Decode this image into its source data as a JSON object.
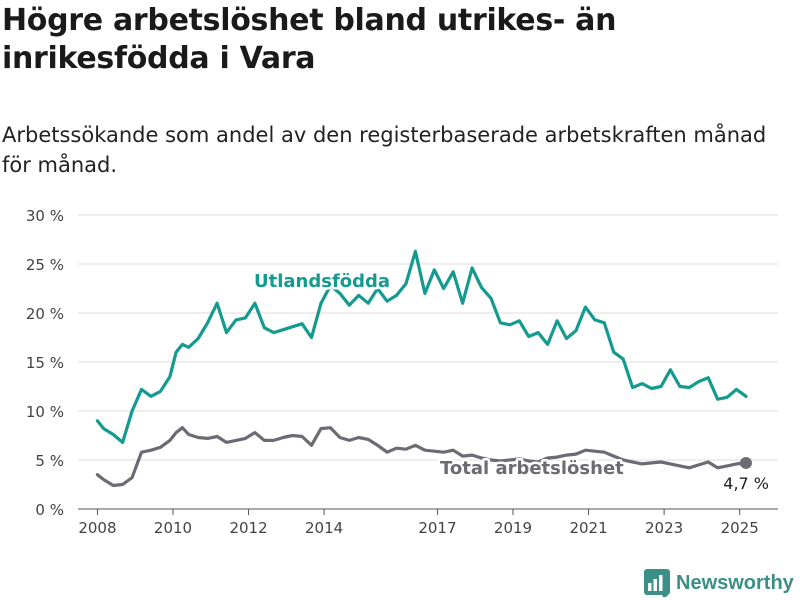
{
  "title": "Högre arbetslöshet bland utrikes- än inrikesfödda i Vara",
  "subtitle": "Arbetssökande som andel av den registerbaserade arbetskraften månad för månad.",
  "brand": {
    "name": "Newsworthy"
  },
  "colors": {
    "foreign": "#149a8f",
    "total": "#6b6b73",
    "grid": "#dddddd",
    "axis": "#444444"
  },
  "chart_data": {
    "type": "line",
    "ylim": [
      0,
      30
    ],
    "ylabel": "",
    "yticks": [
      {
        "value": 0,
        "label": "0 %"
      },
      {
        "value": 5,
        "label": "5 %"
      },
      {
        "value": 10,
        "label": "10 %"
      },
      {
        "value": 15,
        "label": "15 %"
      },
      {
        "value": 20,
        "label": "20 %"
      },
      {
        "value": 25,
        "label": "25 %"
      },
      {
        "value": 30,
        "label": "30 %"
      }
    ],
    "xticks": [
      "2008",
      "2010",
      "2012",
      "2014",
      "2017",
      "2019",
      "2021",
      "2023",
      "2025"
    ],
    "annotations": {
      "end_value": "4,7 %"
    },
    "series": [
      {
        "name": "Utlandsfödda",
        "x": [
          "2008-01",
          "2008-03",
          "2008-06",
          "2008-09",
          "2008-12",
          "2009-03",
          "2009-06",
          "2009-09",
          "2009-12",
          "2010-02",
          "2010-04",
          "2010-06",
          "2010-09",
          "2010-12",
          "2011-03",
          "2011-06",
          "2011-09",
          "2011-12",
          "2012-03",
          "2012-06",
          "2012-09",
          "2012-12",
          "2013-03",
          "2013-06",
          "2013-09",
          "2013-12",
          "2014-03",
          "2014-06",
          "2014-09",
          "2014-12",
          "2015-03",
          "2015-06",
          "2015-09",
          "2015-12",
          "2016-03",
          "2016-06",
          "2016-09",
          "2016-12",
          "2017-03",
          "2017-06",
          "2017-09",
          "2017-12",
          "2018-03",
          "2018-06",
          "2018-09",
          "2018-12",
          "2019-03",
          "2019-06",
          "2019-09",
          "2019-12",
          "2020-03",
          "2020-06",
          "2020-09",
          "2020-12",
          "2021-03",
          "2021-06",
          "2021-09",
          "2021-12",
          "2022-03",
          "2022-06",
          "2022-09",
          "2022-12",
          "2023-03",
          "2023-06",
          "2023-09",
          "2023-12",
          "2024-03",
          "2024-06",
          "2024-09",
          "2024-12",
          "2025-03"
        ],
        "values": [
          9.0,
          8.2,
          7.6,
          6.8,
          10.0,
          12.2,
          11.5,
          12.0,
          13.5,
          16.0,
          16.8,
          16.5,
          17.4,
          19.0,
          21.0,
          18.0,
          19.3,
          19.5,
          21.0,
          18.5,
          18.0,
          18.3,
          18.6,
          18.9,
          17.5,
          21.0,
          22.8,
          22.0,
          20.8,
          21.8,
          21.0,
          22.5,
          21.2,
          21.8,
          23.0,
          26.3,
          22.0,
          24.4,
          22.5,
          24.2,
          21.0,
          24.6,
          22.6,
          21.5,
          19.0,
          18.8,
          19.2,
          17.6,
          18.0,
          16.8,
          19.2,
          17.4,
          18.2,
          20.6,
          19.3,
          19.0,
          16.0,
          15.3,
          12.4,
          12.8,
          12.3,
          12.5,
          14.2,
          12.5,
          12.4,
          13.0,
          13.4,
          11.2,
          11.4,
          12.2,
          11.5
        ]
      },
      {
        "name": "Total arbetslöshet",
        "x": [
          "2008-01",
          "2008-03",
          "2008-06",
          "2008-09",
          "2008-12",
          "2009-03",
          "2009-06",
          "2009-09",
          "2009-12",
          "2010-02",
          "2010-04",
          "2010-06",
          "2010-09",
          "2010-12",
          "2011-03",
          "2011-06",
          "2011-09",
          "2011-12",
          "2012-03",
          "2012-06",
          "2012-09",
          "2012-12",
          "2013-03",
          "2013-06",
          "2013-09",
          "2013-12",
          "2014-03",
          "2014-06",
          "2014-09",
          "2014-12",
          "2015-03",
          "2015-06",
          "2015-09",
          "2015-12",
          "2016-03",
          "2016-06",
          "2016-09",
          "2016-12",
          "2017-03",
          "2017-06",
          "2017-09",
          "2017-12",
          "2018-03",
          "2018-06",
          "2018-09",
          "2018-12",
          "2019-03",
          "2019-06",
          "2019-09",
          "2019-12",
          "2020-03",
          "2020-06",
          "2020-09",
          "2020-12",
          "2021-03",
          "2021-06",
          "2021-09",
          "2021-12",
          "2022-03",
          "2022-06",
          "2022-09",
          "2022-12",
          "2023-03",
          "2023-06",
          "2023-09",
          "2023-12",
          "2024-03",
          "2024-06",
          "2024-09",
          "2024-12",
          "2025-03"
        ],
        "values": [
          3.5,
          3.0,
          2.4,
          2.5,
          3.2,
          5.8,
          6.0,
          6.3,
          7.0,
          7.8,
          8.3,
          7.6,
          7.3,
          7.2,
          7.4,
          6.8,
          7.0,
          7.2,
          7.8,
          7.0,
          7.0,
          7.3,
          7.5,
          7.4,
          6.5,
          8.2,
          8.3,
          7.3,
          7.0,
          7.3,
          7.1,
          6.5,
          5.8,
          6.2,
          6.1,
          6.5,
          6.0,
          5.9,
          5.8,
          6.0,
          5.4,
          5.5,
          5.2,
          5.0,
          4.9,
          5.0,
          5.1,
          4.9,
          4.8,
          5.2,
          5.3,
          5.5,
          5.6,
          6.0,
          5.9,
          5.8,
          5.4,
          5.0,
          4.8,
          4.6,
          4.7,
          4.8,
          4.6,
          4.4,
          4.2,
          4.5,
          4.8,
          4.2,
          4.4,
          4.6,
          4.7
        ]
      }
    ]
  }
}
